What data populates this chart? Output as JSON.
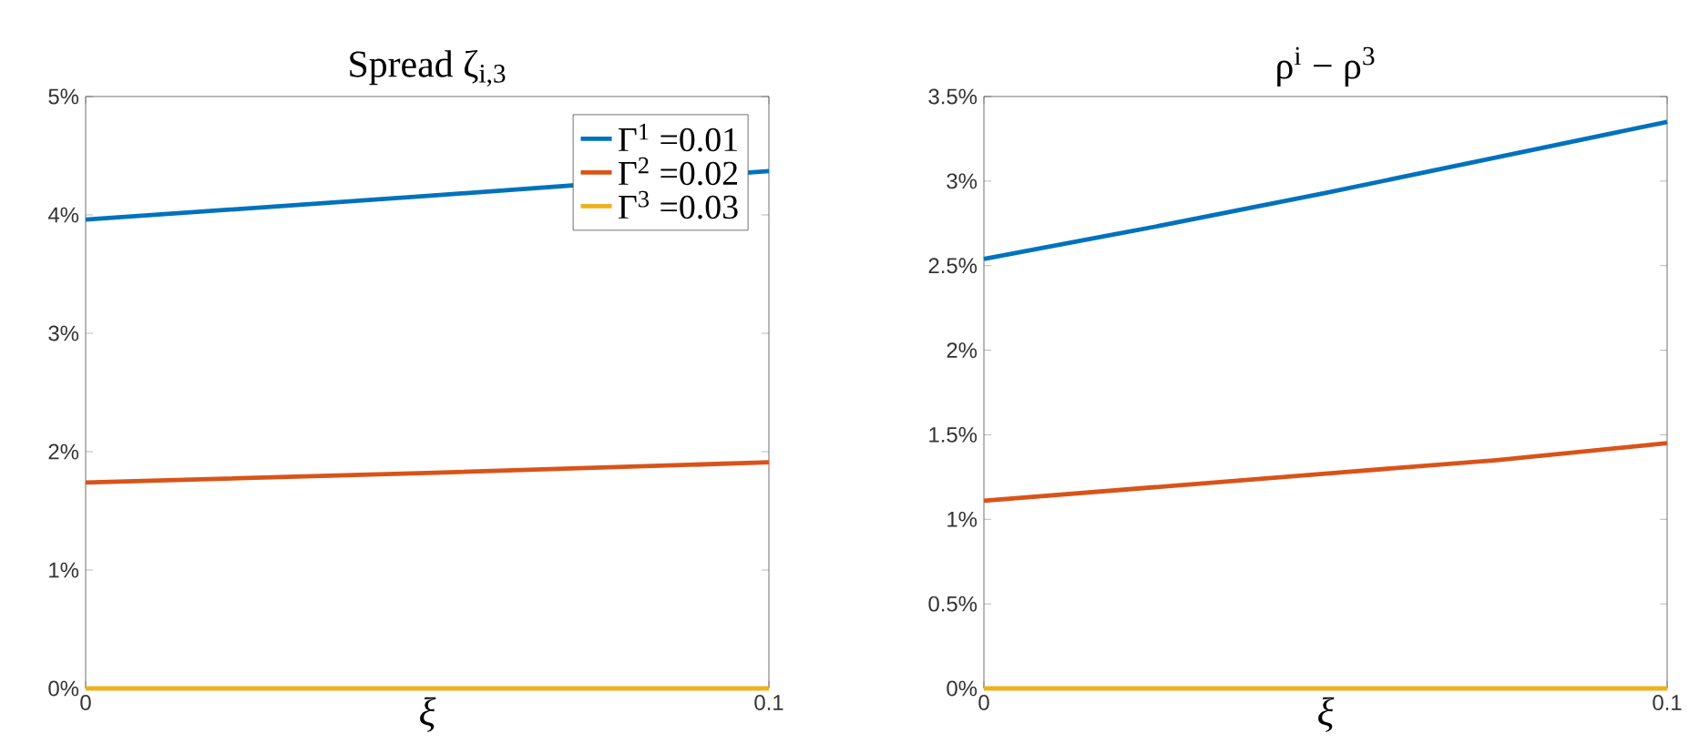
{
  "chart_data": [
    {
      "type": "line",
      "title": "Spread ζ$_{i,3}$",
      "xlabel": "ξ",
      "xlim": [
        0,
        0.1
      ],
      "xticks": [
        0,
        0.1
      ],
      "ylim": [
        0,
        5
      ],
      "yticks": [
        {
          "value": 0,
          "label": "0%"
        },
        {
          "value": 1,
          "label": "1%"
        },
        {
          "value": 2,
          "label": "2%"
        },
        {
          "value": 3,
          "label": "3%"
        },
        {
          "value": 4,
          "label": "4%"
        },
        {
          "value": 5,
          "label": "5%"
        }
      ],
      "legend": "top right",
      "grid": false,
      "series": [
        {
          "name": "Γ$^{1}$ =0.01",
          "color": "#0072bd",
          "x": [
            0,
            0.05,
            0.1
          ],
          "values": [
            3.96,
            4.16,
            4.37
          ]
        },
        {
          "name": "Γ$^{2}$ =0.02",
          "color": "#d95319",
          "x": [
            0,
            0.05,
            0.1
          ],
          "values": [
            1.74,
            1.82,
            1.91
          ]
        },
        {
          "name": "Γ$^{3}$ =0.03",
          "color": "#edb120",
          "x": [
            0,
            0.05,
            0.1
          ],
          "values": [
            0,
            0,
            0
          ]
        }
      ]
    },
    {
      "type": "line",
      "title": "ρ$^{i}$ − ρ$^{3}$",
      "xlabel": "ξ",
      "xlim": [
        0,
        0.1
      ],
      "xticks": [
        0,
        0.1
      ],
      "ylim": [
        0,
        3.5
      ],
      "yticks": [
        {
          "value": 0,
          "label": "0%"
        },
        {
          "value": 0.5,
          "label": "0.5%"
        },
        {
          "value": 1,
          "label": "1%"
        },
        {
          "value": 1.5,
          "label": "1.5%"
        },
        {
          "value": 2,
          "label": "2%"
        },
        {
          "value": 2.5,
          "label": "2.5%"
        },
        {
          "value": 3,
          "label": "3%"
        },
        {
          "value": 3.5,
          "label": "3.5%"
        }
      ],
      "grid": false,
      "series": [
        {
          "color": "#0072bd",
          "x": [
            0,
            0.025,
            0.05,
            0.075,
            0.1
          ],
          "values": [
            2.54,
            2.73,
            2.93,
            3.14,
            3.35
          ]
        },
        {
          "color": "#d95319",
          "x": [
            0,
            0.025,
            0.05,
            0.075,
            0.1
          ],
          "values": [
            1.11,
            1.19,
            1.27,
            1.35,
            1.45
          ]
        },
        {
          "color": "#edb120",
          "x": [
            0,
            0.025,
            0.05,
            0.075,
            0.1
          ],
          "values": [
            0,
            0,
            0,
            0,
            0
          ]
        }
      ]
    }
  ]
}
